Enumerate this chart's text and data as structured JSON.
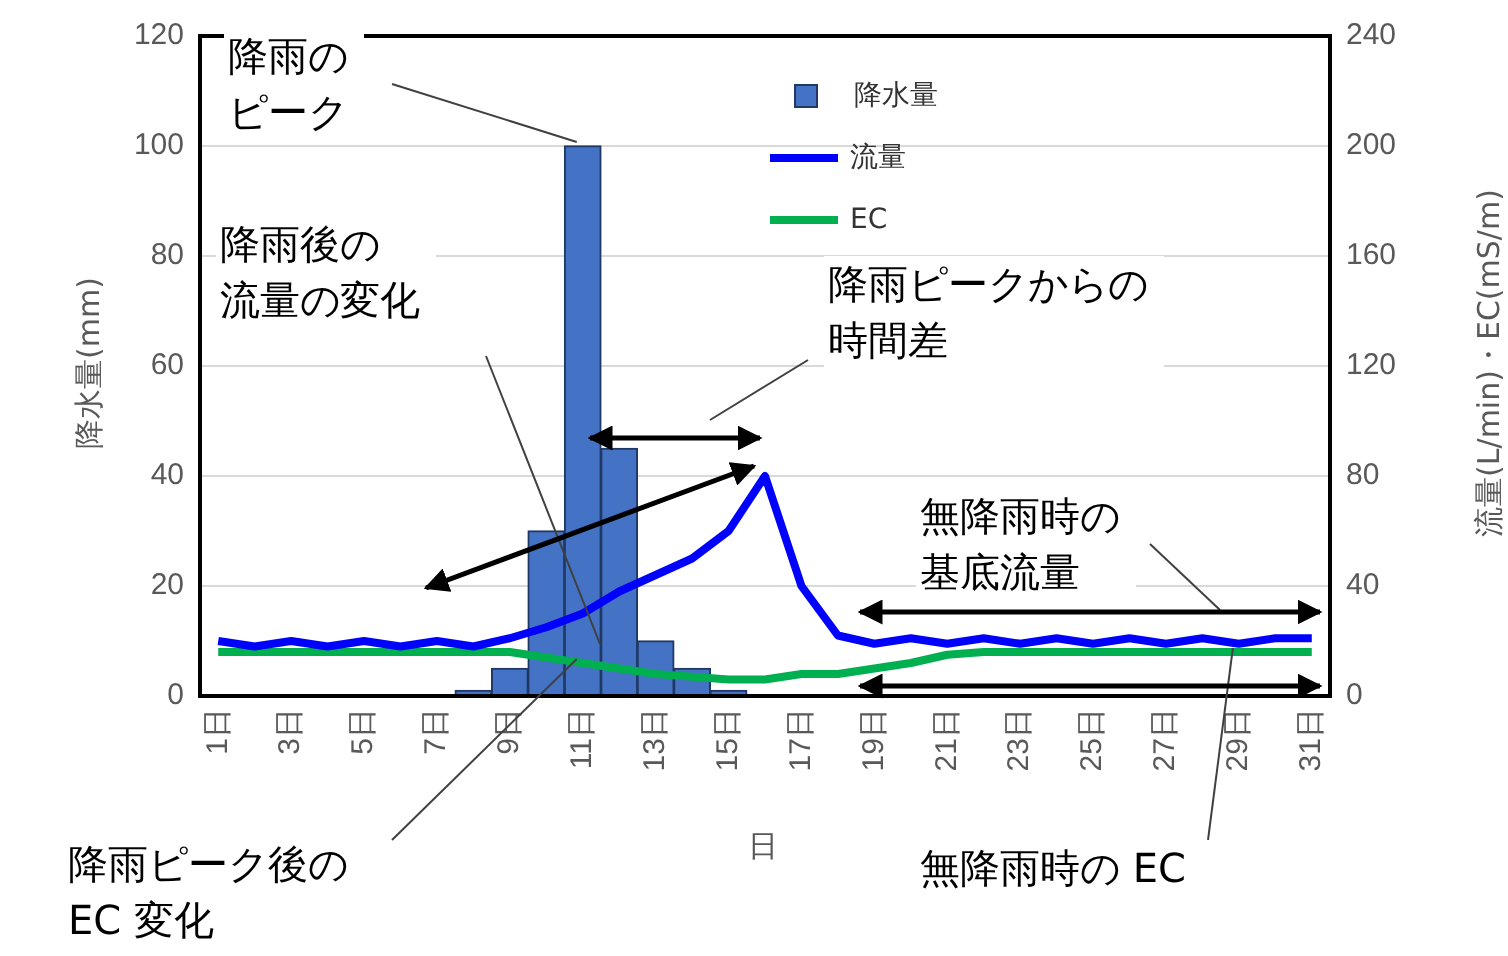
{
  "chart_data": {
    "type": "bar",
    "categories": [
      "1日",
      null,
      "3日",
      null,
      "5日",
      null,
      "7日",
      null,
      "9日",
      null,
      "11日",
      null,
      "13日",
      null,
      "15日",
      null,
      "17日",
      null,
      "19日",
      null,
      "21日",
      null,
      "23日",
      null,
      "25日",
      null,
      "27日",
      null,
      "29日",
      null,
      "31日"
    ],
    "series": [
      {
        "name": "降水量",
        "color": "#4472c4",
        "values": [
          0,
          0,
          0,
          0,
          0,
          0,
          0,
          1,
          5,
          30,
          100,
          45,
          10,
          5,
          1,
          0,
          0,
          0,
          0,
          0,
          0,
          0,
          0,
          0,
          0,
          0,
          0,
          0,
          0,
          0,
          0
        ]
      },
      {
        "name": "流量",
        "type": "line",
        "axis": "y2",
        "color": "#0000ff",
        "values": [
          20,
          18,
          20,
          18,
          20,
          18,
          20,
          18,
          21,
          25,
          30,
          38,
          44,
          50,
          60,
          80,
          40,
          22,
          19,
          21,
          19,
          21,
          19,
          21,
          19,
          21,
          19,
          21,
          19,
          21,
          21
        ]
      },
      {
        "name": "EC",
        "type": "line",
        "axis": "y2",
        "color": "#00b050",
        "values": [
          16,
          16,
          16,
          16,
          16,
          16,
          16,
          16,
          16,
          14,
          12,
          10,
          8,
          7,
          6,
          6,
          8,
          8,
          10,
          12,
          15,
          16,
          16,
          16,
          16,
          16,
          16,
          16,
          16,
          16,
          16
        ]
      }
    ],
    "xlabel": "日",
    "ylabel": "降水量(mm)",
    "y2label": "流量(L/min)・EC(mS/m)",
    "ylim": [
      0,
      120
    ],
    "yticks": [
      0,
      20,
      40,
      60,
      80,
      100,
      120
    ],
    "y2lim": [
      0,
      240
    ],
    "y2ticks": [
      0,
      40,
      80,
      120,
      160,
      200,
      240
    ],
    "grid": "y",
    "legend": "top",
    "marker": "none",
    "line_style": "solid",
    "annotations": [
      {
        "text": "降雨のピーク",
        "x": "11日",
        "y": 100
      },
      "降雨後の流量の変化",
      "降雨ピークからの時間差",
      "無降雨時の基底流量",
      {
        "text": "降雨ピーク後のEC 変化",
        "x": "11日",
        "y": 6
      },
      {
        "text": "無降雨時の EC",
        "x": "29日",
        "y": 8
      }
    ]
  }
}
